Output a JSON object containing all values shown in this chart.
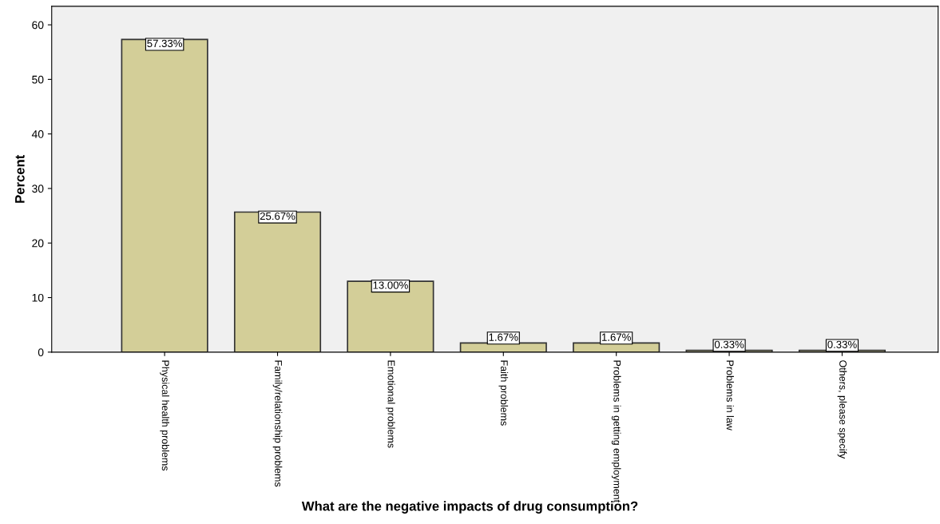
{
  "chart_data": {
    "type": "bar",
    "xlabel": "What are the negative impacts of drug consumption?",
    "ylabel": "Percent",
    "categories": [
      "Physical health problems",
      "Family/relationship problems",
      "Emotional problems",
      "Faith problems",
      "Problems in getting employment",
      "Problems in law",
      "Others, please specify"
    ],
    "values": [
      57.33,
      25.67,
      13.0,
      1.67,
      1.67,
      0.33,
      0.33
    ],
    "value_labels": [
      "57.33%",
      "25.67%",
      "13.00%",
      "1.67%",
      "1.67%",
      "0.33%",
      "0.33%"
    ],
    "color": "#d3ce98",
    "ylim": [
      0,
      63.4
    ],
    "yticks": [
      0,
      10,
      20,
      30,
      40,
      50,
      60
    ],
    "grid": false
  }
}
